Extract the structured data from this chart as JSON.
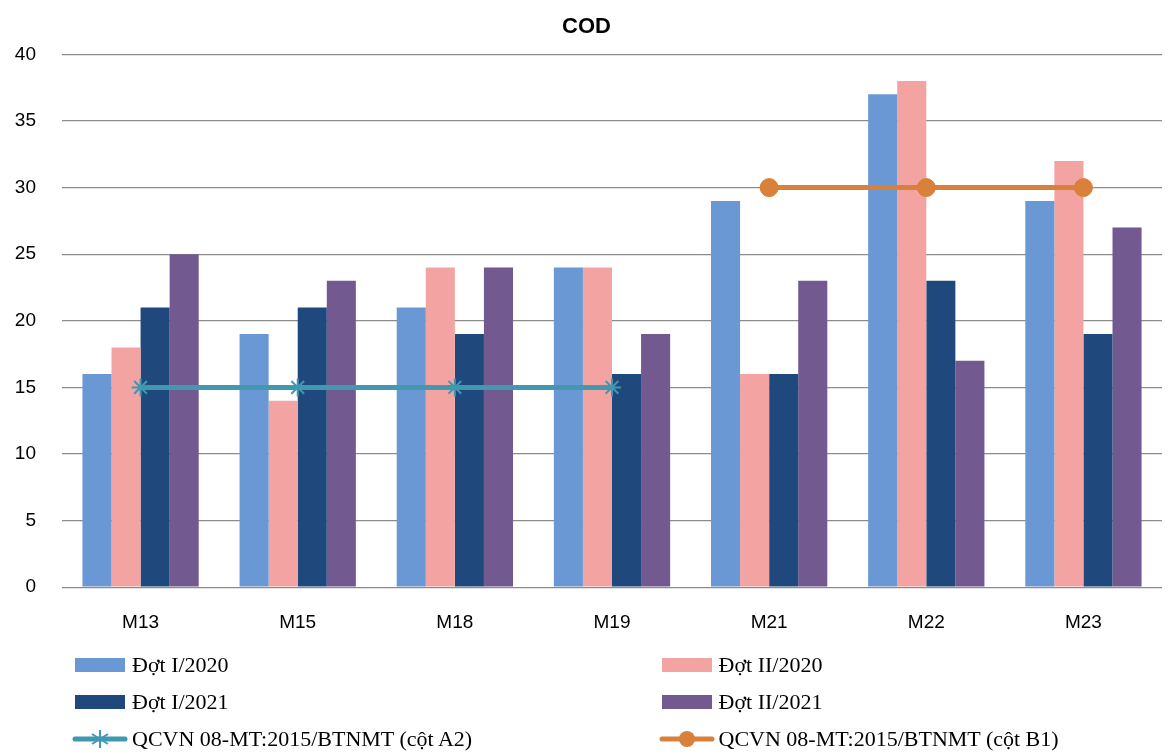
{
  "chart_data": {
    "type": "bar",
    "title": "COD",
    "categories": [
      "M13",
      "M15",
      "M18",
      "M19",
      "M21",
      "M22",
      "M23"
    ],
    "series": [
      {
        "name": "Đợt I/2020",
        "color": "#6a98d4",
        "values": [
          16,
          19,
          21,
          24,
          29,
          37,
          29
        ]
      },
      {
        "name": "Đợt II/2020",
        "color": "#f4a3a3",
        "values": [
          18,
          14,
          24,
          24,
          16,
          38,
          32
        ]
      },
      {
        "name": "Đợt I/2021",
        "color": "#1f497d",
        "values": [
          21,
          21,
          19,
          16,
          16,
          23,
          19
        ]
      },
      {
        "name": "Đợt II/2021",
        "color": "#72598f",
        "values": [
          25,
          23,
          24,
          19,
          23,
          17,
          27
        ]
      },
      {
        "name": "QCVN 08-MT:2015/BTNMT (cột A2)",
        "type": "line",
        "marker": "cross",
        "color": "#4198af",
        "values": [
          15,
          15,
          15,
          15,
          null,
          null,
          null
        ]
      },
      {
        "name": "QCVN 08-MT:2015/BTNMT (cột B1)",
        "type": "line",
        "marker": "circle",
        "color": "#d9813a",
        "values": [
          null,
          null,
          null,
          null,
          30,
          30,
          30
        ]
      }
    ],
    "ylim": [
      0,
      40
    ],
    "yticks": [
      0,
      5,
      10,
      15,
      20,
      25,
      30,
      35,
      40
    ],
    "grid": "y",
    "legend": "bottom"
  }
}
